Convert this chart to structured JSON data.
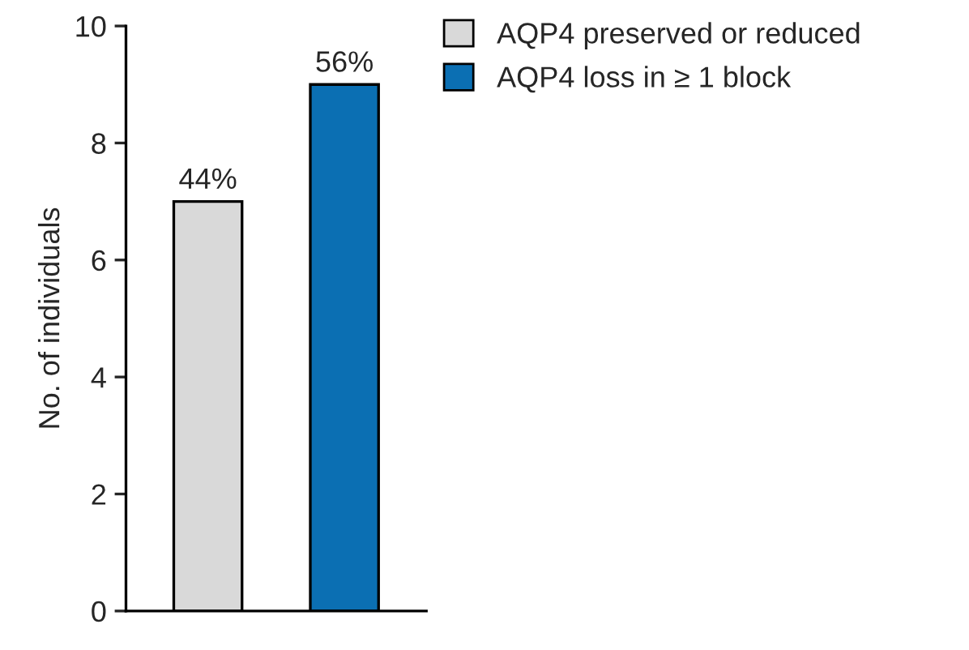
{
  "chart_data": {
    "type": "bar",
    "ylabel": "No. of individuals",
    "categories": [
      null,
      null
    ],
    "series": [
      {
        "name": "AQP4 preserved or reduced",
        "color": "#d9d9d9",
        "values": [
          7,
          null
        ]
      },
      {
        "name": "AQP4 loss in ≥ 1 block",
        "color": "#0b6fb3",
        "values": [
          null,
          9
        ]
      }
    ],
    "annotations": [
      {
        "text": "44%",
        "y": 7
      },
      {
        "text": "56%",
        "y": 9
      }
    ],
    "ylim": [
      0,
      10
    ],
    "yticks": [
      0,
      2,
      4,
      6,
      8,
      10
    ],
    "grid": false,
    "legend": "top right",
    "tick_labels": "y"
  }
}
